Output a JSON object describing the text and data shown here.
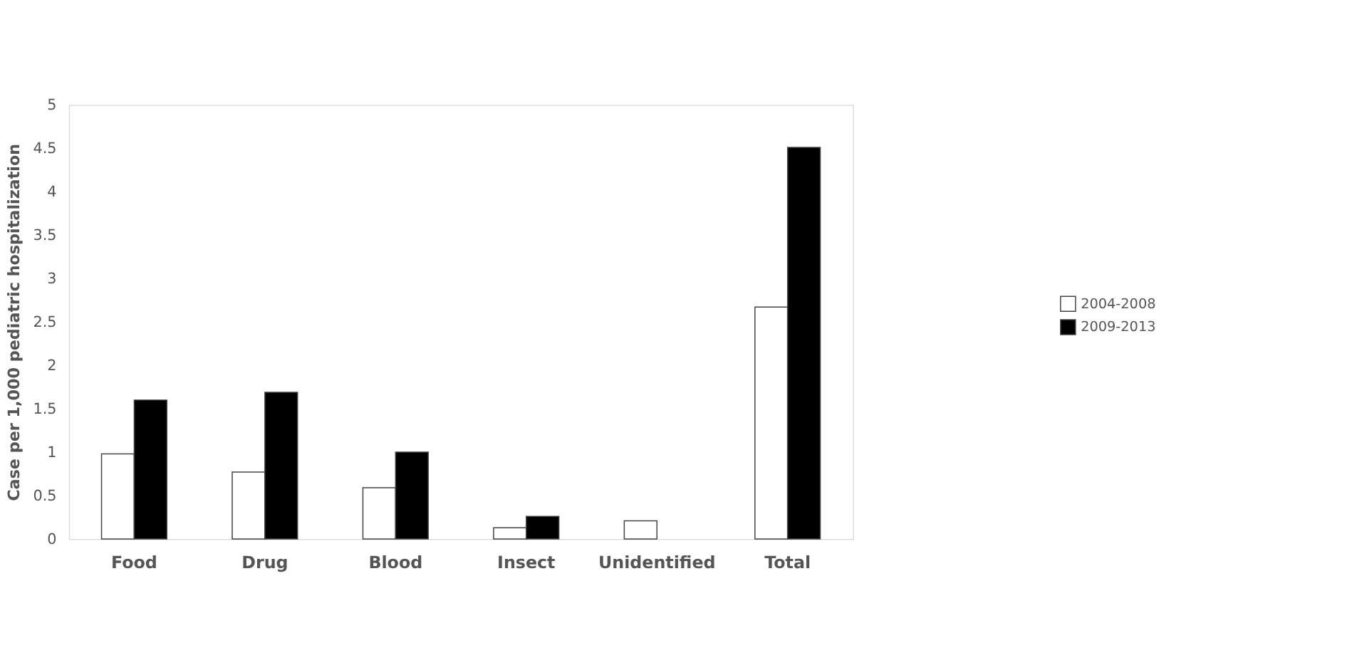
{
  "chart_data": {
    "type": "bar",
    "ylabel": "Case per 1,000 pediatric hospitalization",
    "categories": [
      "Food",
      "Drug",
      "Blood",
      "Insect",
      "Unidentified",
      "Total"
    ],
    "series": [
      {
        "name": "2004-2008",
        "color": "#ffffff",
        "values": [
          0.98,
          0.77,
          0.59,
          0.13,
          0.21,
          2.67
        ]
      },
      {
        "name": "2009-2013",
        "color": "#000000",
        "values": [
          1.6,
          1.69,
          1.0,
          0.26,
          null,
          4.51
        ]
      }
    ],
    "ylim": [
      0,
      5
    ],
    "yticks": [
      0,
      0.5,
      1,
      1.5,
      2,
      2.5,
      3,
      3.5,
      4,
      4.5,
      5
    ],
    "grid": false,
    "legend": "right"
  }
}
